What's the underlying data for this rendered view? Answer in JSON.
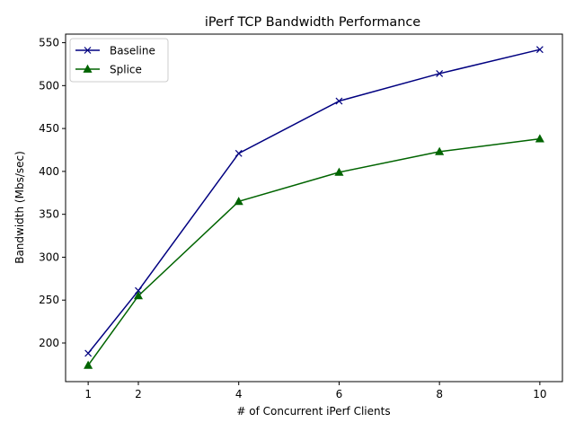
{
  "chart_data": {
    "type": "line",
    "title": "iPerf TCP Bandwidth Performance",
    "xlabel": "# of Concurrent iPerf Clients",
    "ylabel": "Bandwidth (Mbs/sec)",
    "x": [
      1,
      2,
      4,
      6,
      8,
      10
    ],
    "xticks": [
      1,
      2,
      4,
      6,
      8,
      10
    ],
    "yticks": [
      200,
      250,
      300,
      350,
      400,
      450,
      500,
      550
    ],
    "xlim": [
      0.55,
      10.45
    ],
    "ylim": [
      155,
      560
    ],
    "grid": false,
    "legend_position": "upper-left",
    "series": [
      {
        "name": "Baseline",
        "values": [
          188,
          261,
          421,
          482,
          514,
          542
        ],
        "color": "#000080",
        "marker": "x"
      },
      {
        "name": "Splice",
        "values": [
          174,
          255,
          365,
          399,
          423,
          438
        ],
        "color": "#006400",
        "marker": "triangle-up"
      }
    ]
  }
}
